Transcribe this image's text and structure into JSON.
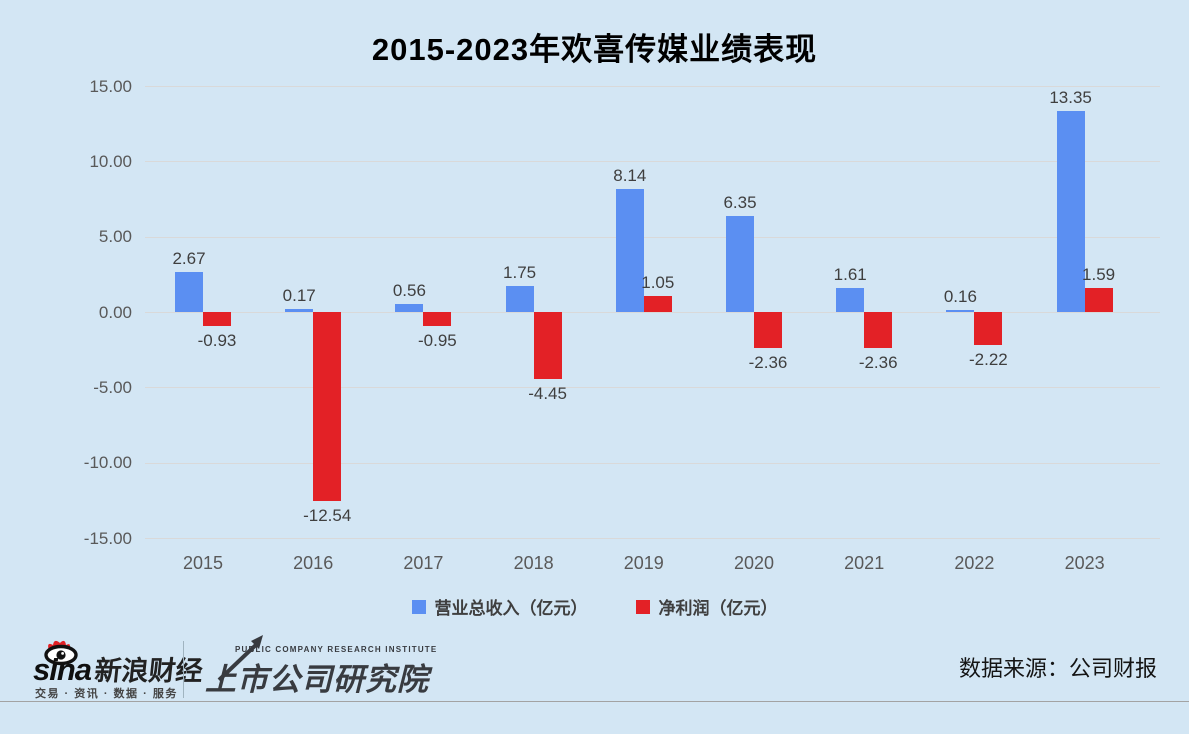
{
  "title": "2015-2023年欢喜传媒业绩表现",
  "chart_data": {
    "type": "bar",
    "title": "2015-2023年欢喜传媒业绩表现",
    "categories": [
      "2015",
      "2016",
      "2017",
      "2018",
      "2019",
      "2020",
      "2021",
      "2022",
      "2023"
    ],
    "series": [
      {
        "name": "营业总收入（亿元）",
        "color": "#5b8ff2",
        "values": [
          2.67,
          0.17,
          0.56,
          1.75,
          8.14,
          6.35,
          1.61,
          0.16,
          13.35
        ],
        "labels": [
          "2.67",
          "0.17",
          "0.56",
          "1.75",
          "8.14",
          "6.35",
          "1.61",
          "0.16",
          "13.35"
        ]
      },
      {
        "name": "净利润（亿元）",
        "color": "#e32126",
        "values": [
          -0.93,
          -12.54,
          -0.95,
          -4.45,
          1.05,
          -2.36,
          -2.36,
          -2.22,
          1.59
        ],
        "labels": [
          "-0.93",
          "-12.54",
          "-0.95",
          "-4.45",
          "1.05",
          "-2.36",
          "-2.36",
          "-2.22",
          "1.59"
        ]
      }
    ],
    "ylim": [
      -15,
      15
    ],
    "yticks": [
      15,
      10,
      5,
      0,
      -5,
      -10,
      -15
    ],
    "ytick_labels": [
      "15.00",
      "10.00",
      "5.00",
      "0.00",
      "-5.00",
      "-10.00",
      "-15.00"
    ],
    "grid": true,
    "legend_position": "bottom"
  },
  "footer": {
    "sina": {
      "brand": "sina",
      "name_cn": "新浪财经",
      "tagline": "交易 · 资讯 · 数据 · 服务"
    },
    "institute": {
      "name_en": "PUBLIC COMPANY RESEARCH INSTITUTE",
      "name_cn": "上市公司研究院"
    },
    "source": "数据来源：公司财报"
  },
  "colors": {
    "background": "#d3e6f4",
    "revenue_bar": "#5b8ff2",
    "profit_bar": "#e32126",
    "gridline": "#d9d9d9",
    "footer_line": "#a3a3a3"
  }
}
